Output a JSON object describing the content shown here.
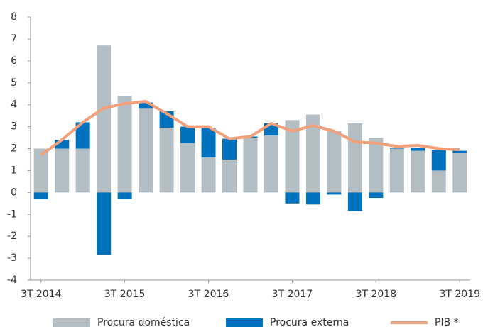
{
  "chart_data": {
    "type": "bar",
    "stacked": true,
    "categories": [
      "3T 2014",
      null,
      null,
      null,
      "3T 2015",
      null,
      null,
      null,
      "3T 2016",
      null,
      null,
      null,
      "3T 2017",
      null,
      null,
      null,
      "3T 2018",
      null,
      null,
      null,
      "3T 2019"
    ],
    "series": [
      {
        "name": "Procura doméstica",
        "color": "#b3bec4",
        "values": [
          2.0,
          2.0,
          2.0,
          6.7,
          4.4,
          3.85,
          2.95,
          2.25,
          1.6,
          1.5,
          2.5,
          2.6,
          3.3,
          3.55,
          2.8,
          3.15,
          2.5,
          2.0,
          1.9,
          1.0,
          1.8
        ]
      },
      {
        "name": "Procura externa",
        "color": "#0071bc",
        "values": [
          -0.3,
          0.4,
          1.2,
          -2.85,
          -0.3,
          0.25,
          0.75,
          0.75,
          1.35,
          0.95,
          0.05,
          0.55,
          -0.5,
          -0.55,
          -0.1,
          -0.85,
          -0.25,
          0.05,
          0.15,
          0.95,
          0.1
        ]
      },
      {
        "name": "PIB *",
        "type": "line",
        "color": "#f0a07a",
        "values": [
          1.7,
          2.4,
          3.2,
          3.85,
          4.05,
          4.15,
          3.6,
          3.0,
          3.0,
          2.45,
          2.55,
          3.15,
          2.8,
          3.05,
          2.8,
          2.3,
          2.25,
          2.1,
          2.15,
          2.0,
          1.95
        ]
      }
    ],
    "ylim": [
      -4,
      8
    ],
    "yticks": [
      -4,
      -3,
      -2,
      -1,
      0,
      1,
      2,
      3,
      4,
      5,
      6,
      7,
      8
    ],
    "legend": "bottom"
  }
}
